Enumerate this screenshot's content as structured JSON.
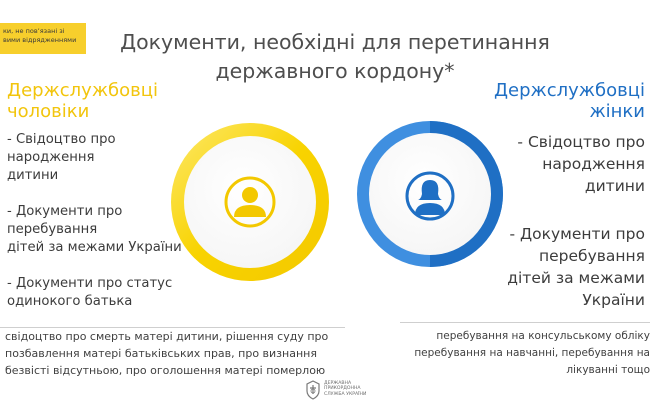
{
  "badge": {
    "lines": [
      "ки, не пов’язані зі",
      "вими відрядженнями"
    ]
  },
  "title": {
    "lines": [
      "Документи, необхідні для перетинання",
      "державного кордону*"
    ]
  },
  "male": {
    "heading": [
      "Держслужбовці",
      "чоловіки"
    ],
    "items": [
      [
        "- Свідоцтво про",
        "народження",
        "дитини"
      ],
      [
        "- Документи про",
        "перебування",
        "дітей за межами України"
      ],
      [
        "- Документи про статус",
        "одинокого батька"
      ]
    ],
    "color": "#f2c50d",
    "icon": "male-person-icon"
  },
  "female": {
    "heading": [
      "Держслужбовці",
      "жінки"
    ],
    "items": [
      [
        "- Свідоцтво про",
        "народження",
        "дитини"
      ],
      [
        "- Документи про",
        "перебування",
        "дітей за межами",
        "України"
      ]
    ],
    "color": "#1f6fc4",
    "icon": "female-person-icon"
  },
  "notes": {
    "left": [
      "свідоцтво про смерть матері дитини, рішення суду про",
      "позбавлення матері батьківських прав, про визнання",
      "безвісті відсутньою, про оголошення матері померлою"
    ],
    "right": [
      "перебування на консульському обліку",
      "перебування на навчанні, перебування на",
      "лікуванні тощо"
    ]
  },
  "logo": {
    "lines": [
      "ДЕРЖАВНА",
      "ПРИКОРДОННА",
      "СЛУЖБА УКРАЇНИ"
    ]
  }
}
